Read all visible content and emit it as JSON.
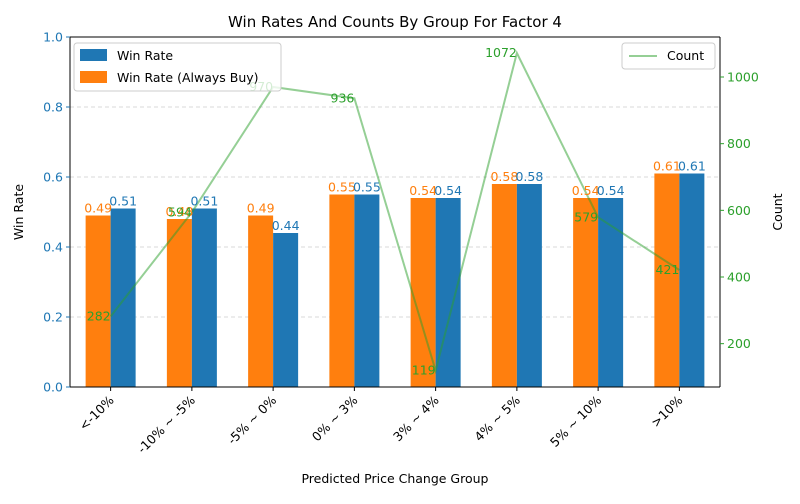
{
  "chart_data": {
    "type": "bar",
    "title": "Win Rates And Counts By Group For Factor 4",
    "xlabel": "Predicted Price Change Group",
    "ylabel": "Win Rate",
    "y2label": "Count",
    "categories": [
      "<-10%",
      "-10% ~ -5%",
      "-5% ~ 0%",
      "0% ~ 3%",
      "3% ~ 4%",
      "4% ~ 5%",
      "5% ~ 10%",
      ">10%"
    ],
    "series": [
      {
        "name": "Win Rate (Always Buy)",
        "type": "bar",
        "axis": "left",
        "color": "#ff7f0e",
        "values": [
          0.49,
          0.48,
          0.49,
          0.55,
          0.54,
          0.58,
          0.54,
          0.61
        ],
        "labels": [
          "0.49",
          "0.48",
          "0.49",
          "0.55",
          "0.54",
          "0.58",
          "0.54",
          "0.61"
        ]
      },
      {
        "name": "Win Rate",
        "type": "bar",
        "axis": "left",
        "color": "#1f77b4",
        "values": [
          0.51,
          0.51,
          0.44,
          0.55,
          0.54,
          0.58,
          0.54,
          0.61
        ],
        "labels": [
          "0.51",
          "0.51",
          "0.44",
          "0.55",
          "0.54",
          "0.58",
          "0.54",
          "0.61"
        ]
      },
      {
        "name": "Count",
        "type": "line",
        "axis": "right",
        "color": "#2ca02c",
        "values": [
          282,
          594,
          970,
          936,
          119,
          1072,
          579,
          421
        ],
        "labels": [
          "282",
          "594",
          "970",
          "936",
          "119",
          "1072",
          "579",
          "421"
        ]
      }
    ],
    "ylim": [
      0,
      1.0
    ],
    "y2lim": [
      70,
      1120
    ],
    "yticks": [
      "0.0",
      "0.2",
      "0.4",
      "0.6",
      "0.8",
      "1.0"
    ],
    "y2ticks": [
      "200",
      "400",
      "600",
      "800",
      "1000"
    ],
    "grid": "horizontal dashed",
    "legend_left": [
      "Win Rate",
      "Win Rate (Always Buy)"
    ],
    "legend_right": [
      "Count"
    ]
  }
}
